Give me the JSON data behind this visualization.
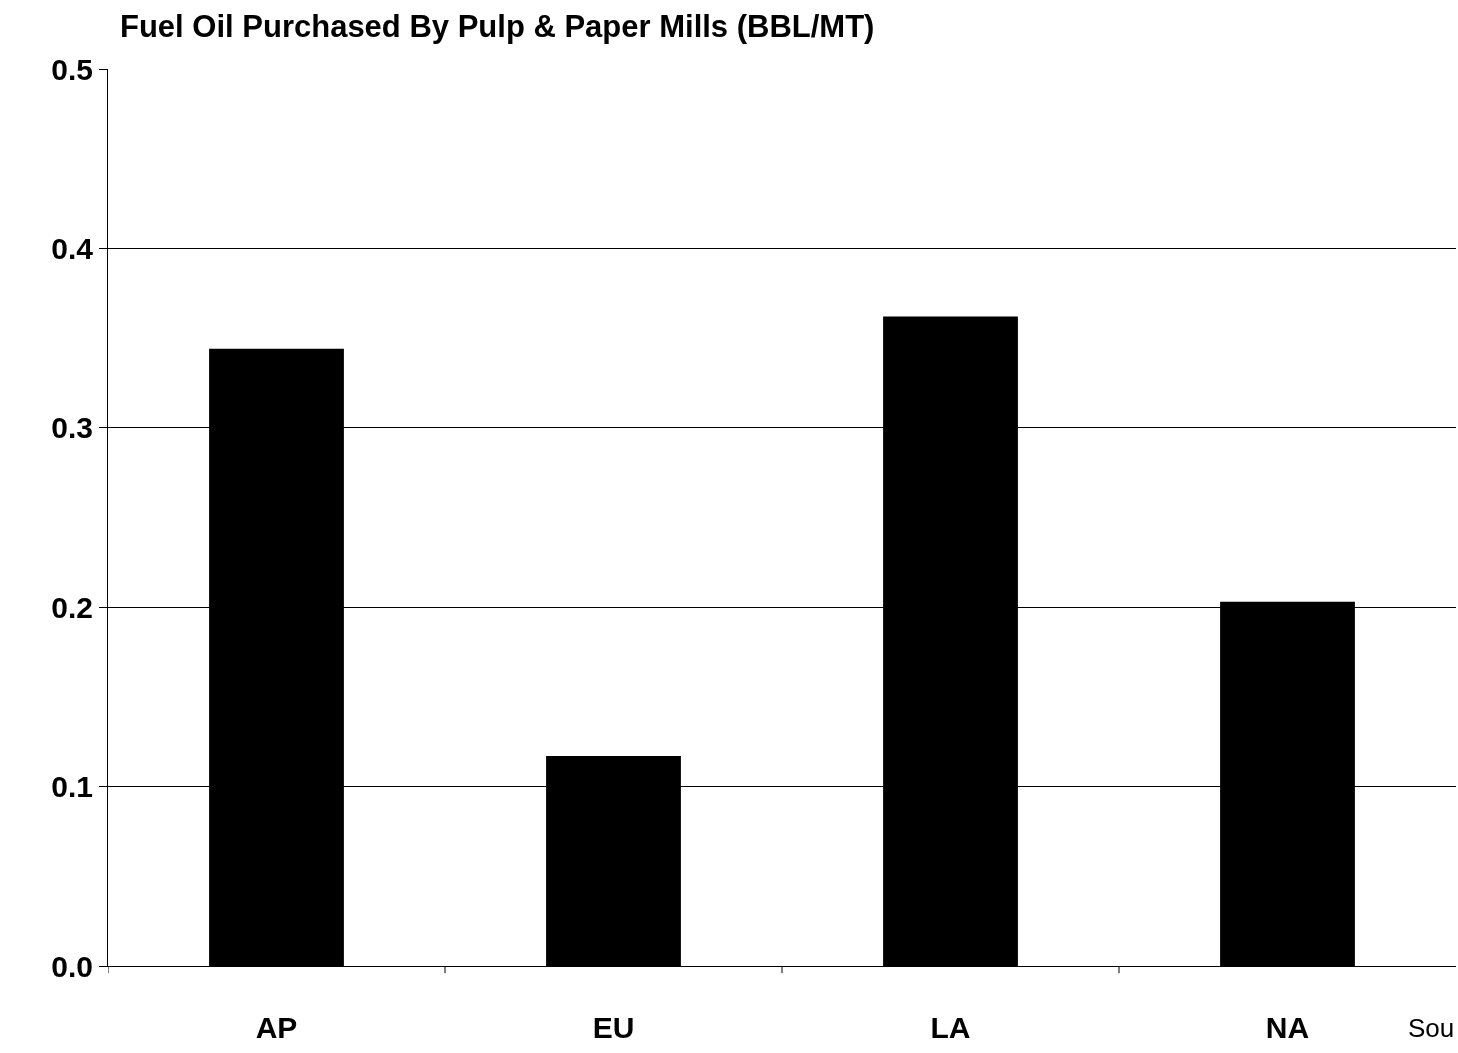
{
  "chart_data": {
    "type": "bar",
    "title": "Fuel Oil Purchased By Pulp & Paper Mills (BBL/MT)",
    "categories": [
      "AP",
      "EU",
      "LA",
      "NA"
    ],
    "values": [
      0.344,
      0.117,
      0.362,
      0.203
    ],
    "color": "#000000",
    "ylim": [
      0,
      0.5
    ],
    "yticks": [
      {
        "value": 0,
        "label": "0.0"
      },
      {
        "value": 0.1,
        "label": "0.1"
      },
      {
        "value": 0.2,
        "label": "0.2"
      },
      {
        "value": 0.3,
        "label": "0.3"
      },
      {
        "value": 0.4,
        "label": "0.4"
      },
      {
        "value": 0.5,
        "label": "0.5"
      }
    ],
    "grid": "y",
    "annotations": [
      "Sou"
    ]
  }
}
